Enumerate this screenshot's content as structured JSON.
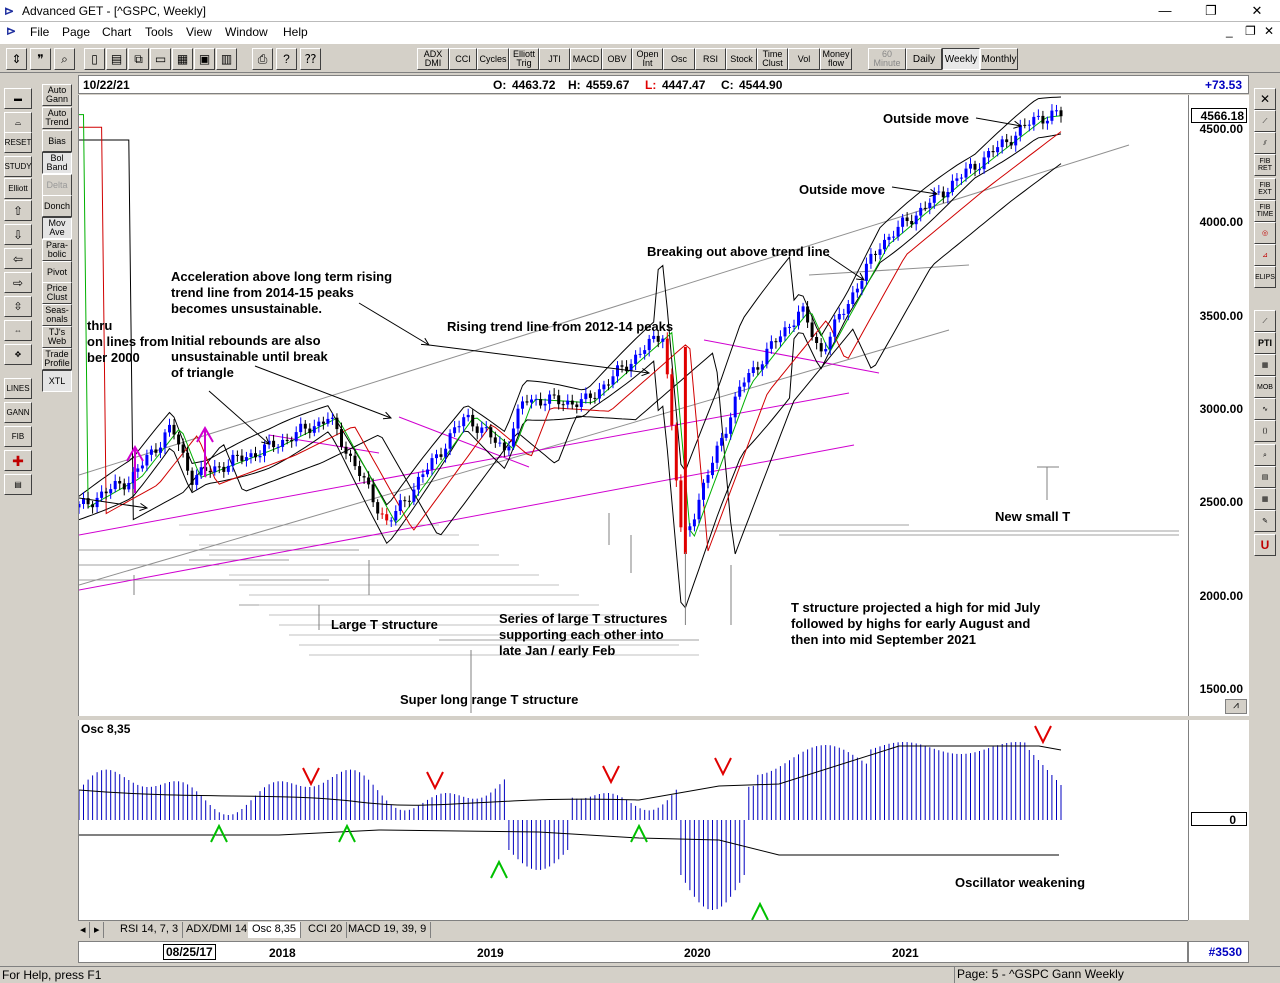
{
  "window": {
    "title": "Advanced GET - [^GSPC, Weekly]",
    "controls": [
      "—",
      "❐",
      "✕"
    ],
    "mdi_controls": [
      "_",
      "❐",
      "✕"
    ]
  },
  "menu": [
    "File",
    "Page",
    "Chart",
    "Tools",
    "View",
    "Window",
    "Help"
  ],
  "toolbar": {
    "studies": [
      "ADX DMI",
      "CCI",
      "Cycles",
      "Elliott Trig",
      "JTI",
      "MACD",
      "OBV",
      "Open Int",
      "Osc",
      "RSI",
      "Stock",
      "Time Clust",
      "Vol",
      "Money flow"
    ],
    "periods": [
      "60 Minute",
      "Daily",
      "Weekly",
      "Monthly"
    ],
    "active_period": "Weekly"
  },
  "left_toolbar": {
    "col2": [
      "Auto Gann",
      "Auto Trend",
      "Bias",
      "Bol Band",
      "Delta",
      "Donch",
      "Mov Ave",
      "Para-bolic",
      "Pivot",
      "Price Clust",
      "Seas-onals",
      "TJ's Web",
      "Trade Profile",
      "XTL"
    ],
    "col1": [
      "RESET",
      "STUDY",
      "Elliott",
      "LINES",
      "GANN",
      "FIB"
    ]
  },
  "right_toolbar": [
    "FIB RET",
    "FIB EXT",
    "FIB TIME",
    "ELIPS",
    "PTI",
    "MOB"
  ],
  "info": {
    "date": "10/22/21",
    "open_label": "O:",
    "open": "4463.72",
    "high_label": "H:",
    "high": "4559.67",
    "low_label": "L:",
    "low": "4447.47",
    "close_label": "C:",
    "close": "4544.90",
    "change": "+73.53"
  },
  "price_axis": {
    "last": "4566.18",
    "ticks": [
      "4500.00",
      "4000.00",
      "3500.00",
      "3000.00",
      "2500.00",
      "2000.00",
      "1500.00"
    ]
  },
  "annotations": {
    "thru": "thru",
    "on_lines": "on lines from",
    "ber2000": "ber 2000",
    "acceleration": "Acceleration above long term rising\ntrend line from 2014-15 peaks\nbecomes unsustainable.",
    "initial": "Initial rebounds are also\nunsustainable until break\nof triangle",
    "rising": "Rising trend line from 2012-14 peaks",
    "breaking": "Breaking out above trend line",
    "outside1": "Outside move",
    "outside2": "Outside move",
    "new_small_t": "New small T",
    "t_structure": "T structure projected a high for mid July\nfollowed by highs for early August and\nthen into mid September 2021",
    "large_t": "Large T structure",
    "series": "Series of large T structures\nsupporting each other into\nlate Jan / early Feb",
    "super": "Super long range T structure",
    "osc_weak": "Oscillator weakening"
  },
  "oscillator": {
    "label": "Osc 8,35",
    "zero": "0"
  },
  "tabs": [
    "RSI 14, 7, 3",
    "ADX/DMI 14",
    "Osc 8,35",
    "CCI 20",
    "MACD 19, 39, 9"
  ],
  "active_tab": "Osc 8,35",
  "time_axis": {
    "start": "08/25/17",
    "years": [
      "2018",
      "2019",
      "2020",
      "2021"
    ],
    "bar_count": "#3530"
  },
  "status": {
    "help": "For Help, press F1",
    "page": "Page: 5 - ^GSPC Gann Weekly"
  },
  "colors": {
    "up_bar": "#0000ff",
    "down_bar": "#000000",
    "crash_bar": "#e00000",
    "ma_fast": "#00b000",
    "ma_slow": "#d00000",
    "trend_magenta": "#d000d0",
    "osc_bar": "#0000c0",
    "arrow_down": "#e00000",
    "arrow_up": "#00c000"
  },
  "chart_data": {
    "type": "candlestick",
    "symbol": "^GSPC",
    "timeframe": "Weekly",
    "ylim": [
      1450,
      4650
    ],
    "x_range": [
      "2017-08-25",
      "2021-10-22"
    ],
    "anchors": [
      {
        "date": "2017-08",
        "close": 2440
      },
      {
        "date": "2017-11",
        "close": 2600
      },
      {
        "date": "2018-01",
        "close": 2870
      },
      {
        "date": "2018-02",
        "close": 2600
      },
      {
        "date": "2018-06",
        "close": 2760
      },
      {
        "date": "2018-09",
        "close": 2920
      },
      {
        "date": "2018-12",
        "close": 2350
      },
      {
        "date": "2019-04",
        "close": 2930
      },
      {
        "date": "2019-06",
        "close": 2750
      },
      {
        "date": "2019-07",
        "close": 3020
      },
      {
        "date": "2019-10",
        "close": 3000
      },
      {
        "date": "2020-02",
        "close": 3380
      },
      {
        "date": "2020-03",
        "close": 2240
      },
      {
        "date": "2020-06",
        "close": 3100
      },
      {
        "date": "2020-09",
        "close": 3500
      },
      {
        "date": "2020-10",
        "close": 3270
      },
      {
        "date": "2021-01",
        "close": 3850
      },
      {
        "date": "2021-05",
        "close": 4200
      },
      {
        "date": "2021-09",
        "close": 4530
      },
      {
        "date": "2021-10",
        "close": 4545
      }
    ],
    "oscillator": {
      "name": "Osc 8,35",
      "zero": 0
    }
  }
}
